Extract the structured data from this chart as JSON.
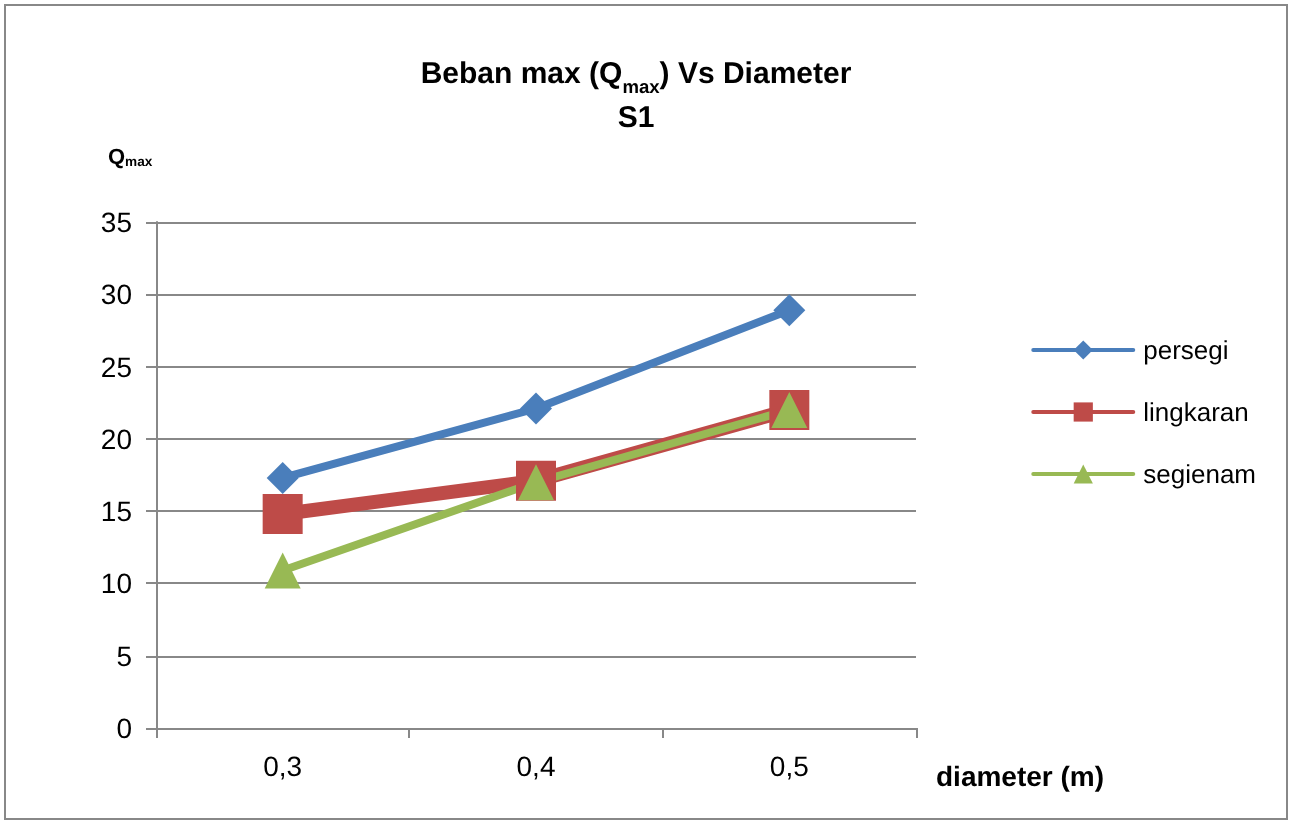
{
  "chart_data": {
    "type": "line",
    "title": "Beban max (Q$_{max}$) Vs Diameter",
    "subtitle": "S1",
    "xlabel": "diameter (m)",
    "ylabel": "Q$_{max}$",
    "categories": [
      "0,3",
      "0,4",
      "0,5"
    ],
    "series": [
      {
        "name": "persegi",
        "color": "#4a7ebb",
        "marker": "diamond",
        "values": [
          17.3,
          22.1,
          28.9
        ]
      },
      {
        "name": "lingkaran",
        "color": "#be4b48",
        "marker": "square",
        "values": [
          14.8,
          17.1,
          22.0
        ]
      },
      {
        "name": "segienam",
        "color": "#98b954",
        "marker": "triangle",
        "values": [
          10.9,
          17.0,
          22.0
        ]
      }
    ],
    "ylim": [
      0,
      35
    ],
    "yticks": [
      0,
      5,
      10,
      15,
      20,
      25,
      30,
      35
    ],
    "grid": "y",
    "legend": "right",
    "line_style": "solid"
  }
}
